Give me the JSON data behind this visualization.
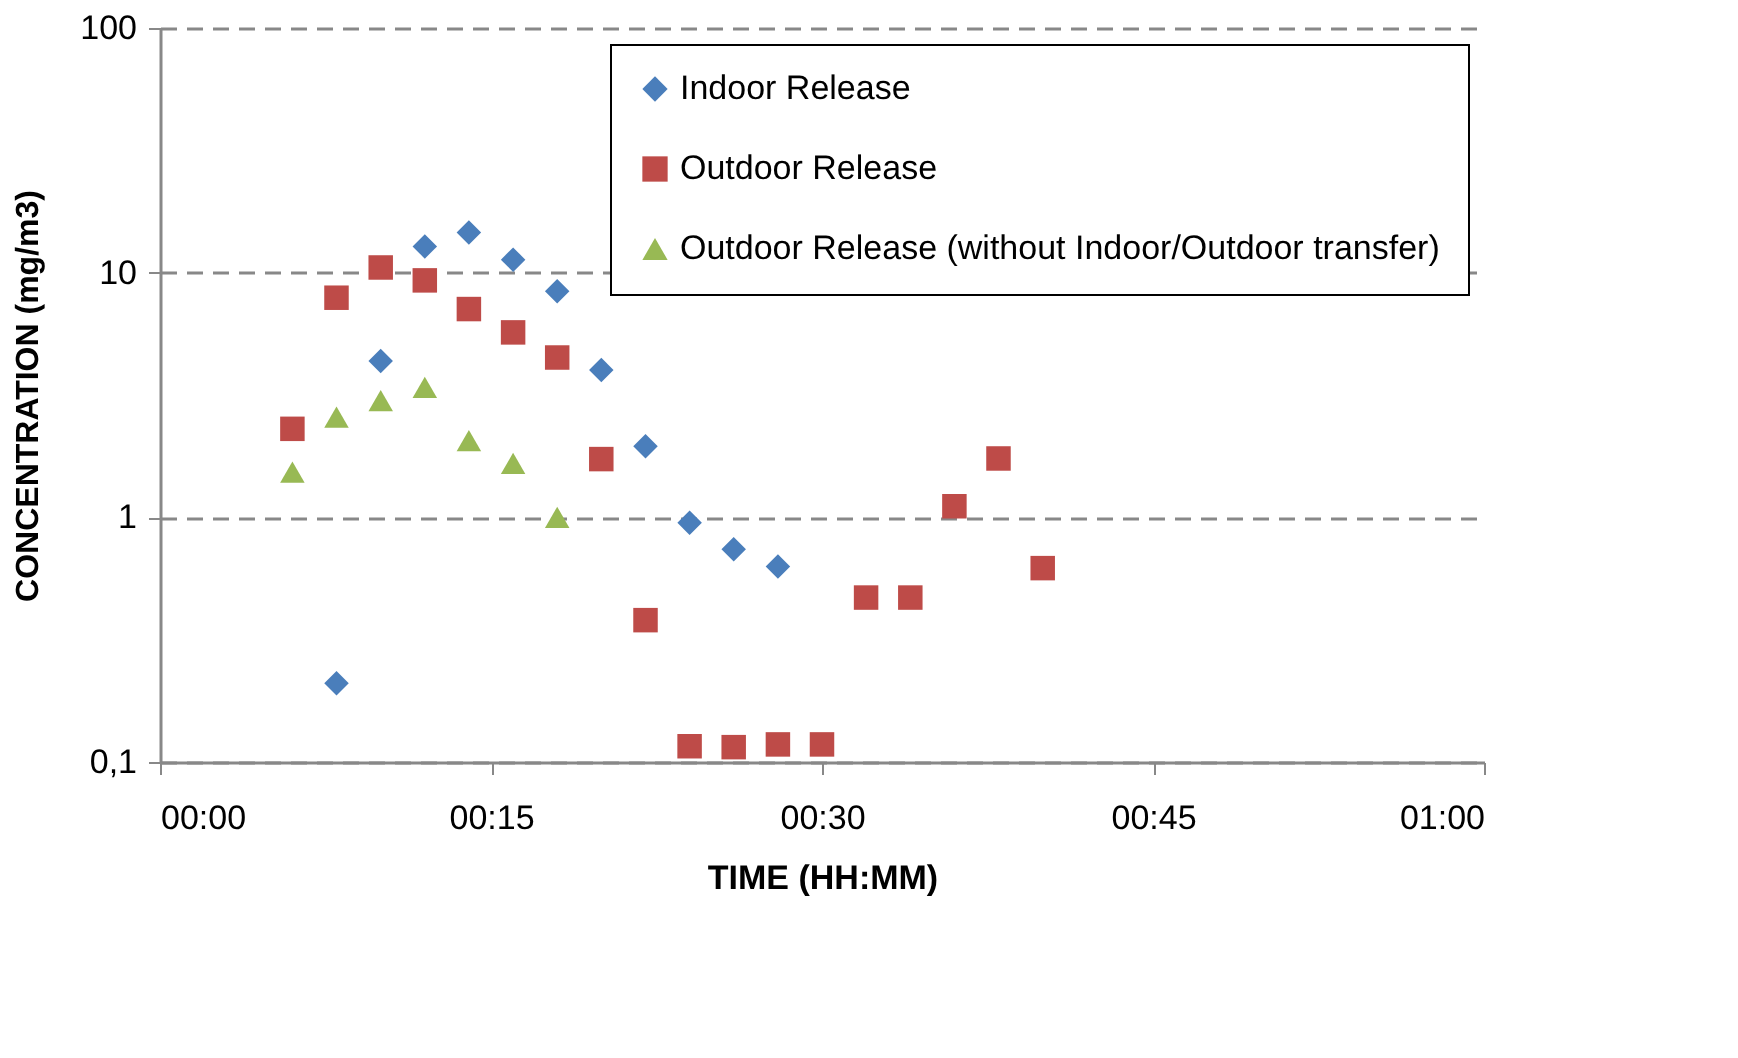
{
  "chart_data": {
    "type": "scatter",
    "xlabel": "TIME (HH:MM)",
    "ylabel": "CONCENTRATION (mg/m3)",
    "log": "y",
    "grid": "y",
    "line_style": "dashed",
    "legend": "top right",
    "xlim": [
      0,
      1
    ],
    "xticks": [
      {
        "value": 0,
        "label": "00:00"
      },
      {
        "value": 0.25,
        "label": "00:15"
      },
      {
        "value": 0.5,
        "label": "00:30"
      },
      {
        "value": 0.75,
        "label": "00:45"
      },
      {
        "value": 1,
        "label": "01:00"
      }
    ],
    "ylim": [
      0.1,
      100
    ],
    "yticks": [
      {
        "value": 0.1,
        "label": "0,1"
      },
      1,
      10,
      100
    ],
    "series": [
      {
        "name": "Indoor Release",
        "color": "#4a7ebb",
        "marker": "diamond",
        "x": [
          0.1333,
          0.1667,
          0.2,
          0.2333,
          0.2667,
          0.3,
          0.3333,
          0.3667,
          0.4,
          0.4333,
          0.4667
        ],
        "values": [
          0.21,
          4.35,
          12.8,
          14.6,
          11.3,
          8.4,
          4.0,
          1.95,
          0.95,
          0.74,
          0.63
        ]
      },
      {
        "name": "Outdoor Release",
        "color": "#be4b48",
        "marker": "square",
        "x": [
          0.1,
          0.1333,
          0.1667,
          0.2,
          0.2333,
          0.2667,
          0.3,
          0.3333,
          0.3667,
          0.4,
          0.4333,
          0.4667,
          0.5,
          0.5333,
          0.5667,
          0.6,
          0.6333,
          0.6667
        ],
        "values": [
          2.3,
          7.9,
          10.5,
          9.3,
          7.1,
          5.7,
          4.5,
          1.73,
          0.38,
          0.116,
          0.115,
          0.118,
          0.118,
          0.47,
          0.47,
          1.11,
          1.74,
          0.62
        ]
      },
      {
        "name": "Outdoor Release (without Indoor/Outdoor transfer)",
        "color": "#98b954",
        "marker": "triangle",
        "x": [
          0.1,
          0.1333,
          0.1667,
          0.2,
          0.2333,
          0.2667,
          0.3
        ],
        "values": [
          1.53,
          2.57,
          3.0,
          3.4,
          2.06,
          1.66,
          1.0
        ]
      }
    ]
  }
}
